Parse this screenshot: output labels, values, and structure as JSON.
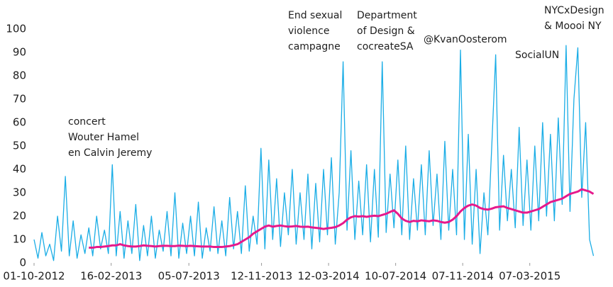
{
  "chart_data": {
    "type": "line",
    "x": [
      "2012-10-01",
      "2012-10-08",
      "2012-10-15",
      "2012-10-22",
      "2012-10-29",
      "2012-11-05",
      "2012-11-12",
      "2012-11-19",
      "2012-11-26",
      "2012-12-03",
      "2012-12-10",
      "2012-12-17",
      "2012-12-24",
      "2012-12-31",
      "2013-01-07",
      "2013-01-14",
      "2013-01-21",
      "2013-01-28",
      "2013-02-04",
      "2013-02-11",
      "2013-02-18",
      "2013-02-25",
      "2013-03-04",
      "2013-03-11",
      "2013-03-18",
      "2013-03-25",
      "2013-04-01",
      "2013-04-08",
      "2013-04-15",
      "2013-04-22",
      "2013-04-29",
      "2013-05-06",
      "2013-05-13",
      "2013-05-20",
      "2013-05-27",
      "2013-06-03",
      "2013-06-10",
      "2013-06-17",
      "2013-06-24",
      "2013-07-01",
      "2013-07-08",
      "2013-07-15",
      "2013-07-22",
      "2013-07-29",
      "2013-08-05",
      "2013-08-12",
      "2013-08-19",
      "2013-08-26",
      "2013-09-02",
      "2013-09-09",
      "2013-09-16",
      "2013-09-23",
      "2013-09-30",
      "2013-10-07",
      "2013-10-14",
      "2013-10-21",
      "2013-10-28",
      "2013-11-04",
      "2013-11-11",
      "2013-11-18",
      "2013-11-25",
      "2013-12-02",
      "2013-12-09",
      "2013-12-16",
      "2013-12-23",
      "2013-12-30",
      "2014-01-06",
      "2014-01-13",
      "2014-01-20",
      "2014-01-27",
      "2014-02-03",
      "2014-02-10",
      "2014-02-17",
      "2014-02-24",
      "2014-03-03",
      "2014-03-10",
      "2014-03-17",
      "2014-03-24",
      "2014-03-31",
      "2014-04-07",
      "2014-04-14",
      "2014-04-21",
      "2014-04-28",
      "2014-05-05",
      "2014-05-12",
      "2014-05-19",
      "2014-05-26",
      "2014-06-02",
      "2014-06-09",
      "2014-06-16",
      "2014-06-23",
      "2014-06-30",
      "2014-07-07",
      "2014-07-14",
      "2014-07-21",
      "2014-07-28",
      "2014-08-04",
      "2014-08-11",
      "2014-08-18",
      "2014-08-25",
      "2014-09-01",
      "2014-09-08",
      "2014-09-15",
      "2014-09-22",
      "2014-09-29",
      "2014-10-06",
      "2014-10-13",
      "2014-10-20",
      "2014-10-27",
      "2014-11-03",
      "2014-11-10",
      "2014-11-17",
      "2014-11-24",
      "2014-12-01",
      "2014-12-08",
      "2014-12-15",
      "2014-12-22",
      "2014-12-29",
      "2015-01-05",
      "2015-01-12",
      "2015-01-19",
      "2015-01-26",
      "2015-02-02",
      "2015-02-09",
      "2015-02-16",
      "2015-02-23",
      "2015-03-02",
      "2015-03-09",
      "2015-03-16",
      "2015-03-23",
      "2015-03-30",
      "2015-04-06",
      "2015-04-13",
      "2015-04-20",
      "2015-04-27",
      "2015-05-04",
      "2015-05-11",
      "2015-05-18",
      "2015-05-25",
      "2015-06-01",
      "2015-06-08",
      "2015-06-15",
      "2015-06-22",
      "2015-06-29"
    ],
    "series": [
      {
        "color": "#1aade6",
        "values": [
          10,
          2,
          13,
          3,
          8,
          1,
          20,
          5,
          37,
          3,
          18,
          2,
          12,
          4,
          15,
          3,
          20,
          6,
          14,
          4,
          42,
          3,
          22,
          2,
          18,
          4,
          25,
          1,
          16,
          3,
          20,
          2,
          14,
          5,
          22,
          3,
          30,
          2,
          17,
          4,
          20,
          3,
          26,
          2,
          15,
          5,
          24,
          4,
          18,
          3,
          28,
          6,
          22,
          4,
          33,
          5,
          20,
          8,
          49,
          6,
          44,
          10,
          36,
          7,
          30,
          12,
          40,
          8,
          30,
          10,
          38,
          6,
          34,
          9,
          40,
          12,
          45,
          8,
          30,
          86,
          14,
          48,
          10,
          35,
          12,
          42,
          9,
          40,
          11,
          86,
          13,
          38,
          15,
          44,
          12,
          50,
          10,
          36,
          14,
          42,
          12,
          48,
          16,
          38,
          10,
          52,
          14,
          40,
          12,
          91,
          10,
          55,
          8,
          40,
          4,
          30,
          12,
          50,
          89,
          14,
          46,
          18,
          40,
          15,
          58,
          16,
          44,
          14,
          50,
          18,
          60,
          20,
          55,
          18,
          62,
          25,
          93,
          22,
          70,
          92,
          28,
          60,
          10,
          3
        ]
      },
      {
        "color": "#e6198c",
        "values": [
          null,
          null,
          null,
          null,
          null,
          null,
          null,
          null,
          null,
          null,
          null,
          null,
          null,
          null,
          6.5,
          6.5,
          6.8,
          6.8,
          7,
          7.2,
          7.5,
          7.5,
          8,
          7.5,
          7.2,
          7,
          7,
          7.2,
          7.5,
          7.3,
          7.2,
          7,
          7.2,
          7.3,
          7.3,
          7.2,
          7.2,
          7.4,
          7.3,
          7.2,
          7.3,
          7.2,
          7.1,
          7,
          7,
          7,
          6.8,
          6.8,
          6.8,
          7,
          7.2,
          7.6,
          8,
          9,
          10,
          11,
          12.5,
          13.5,
          14.5,
          15.5,
          16,
          15.5,
          15.8,
          16,
          15.7,
          15.5,
          15.6,
          15.8,
          15.5,
          15.4,
          15.5,
          15.2,
          15,
          14.8,
          14.5,
          14.8,
          15,
          15.3,
          16,
          17,
          18.5,
          19.5,
          20,
          19.8,
          20,
          19.7,
          20,
          20.2,
          20,
          20.5,
          21,
          21.8,
          22.5,
          21,
          19,
          18,
          17.5,
          18,
          17.8,
          18.2,
          18,
          17.8,
          18.2,
          18,
          17.5,
          17.2,
          17.5,
          18.5,
          20,
          22,
          23.5,
          24.5,
          25,
          24.5,
          23.5,
          23,
          22.8,
          23.2,
          23.8,
          24,
          24.2,
          23.5,
          23,
          22.5,
          22,
          21.5,
          21.5,
          22,
          22.5,
          23,
          24,
          25,
          26,
          26.5,
          27,
          27.5,
          28.5,
          29.5,
          30,
          30.5,
          31.5,
          31,
          30.5,
          29.5
        ]
      }
    ],
    "xlim": [
      "2012-10-01",
      "2015-07-06"
    ],
    "xticks": [
      {
        "value": "2012-10-01",
        "label": "01-10-2012"
      },
      {
        "value": "2013-02-16",
        "label": "16-02-2013"
      },
      {
        "value": "2013-07-05",
        "label": "05-07-2013"
      },
      {
        "value": "2013-11-12",
        "label": "12-11-2013"
      },
      {
        "value": "2014-03-12",
        "label": "12-03-2014"
      },
      {
        "value": "2014-07-10",
        "label": "10-07-2014"
      },
      {
        "value": "2014-11-07",
        "label": "07-11-2014"
      },
      {
        "value": "2015-03-07",
        "label": "07-03-2015"
      }
    ],
    "ylim": [
      0,
      100
    ],
    "yticks": [
      0,
      10,
      20,
      30,
      40,
      50,
      60,
      70,
      80,
      90,
      100
    ],
    "grid": false,
    "annotations": [
      [
        "concert",
        "Wouter Hamel",
        "en Calvin Jeremy"
      ],
      [
        "End sexual",
        "violence",
        "campagne"
      ],
      [
        "Department",
        "of Design &",
        "cocreateSA"
      ],
      [
        "@KvanOosterom"
      ],
      [
        "SocialUN"
      ],
      [
        "NYCxDesign",
        "& Moooi NY"
      ]
    ]
  }
}
